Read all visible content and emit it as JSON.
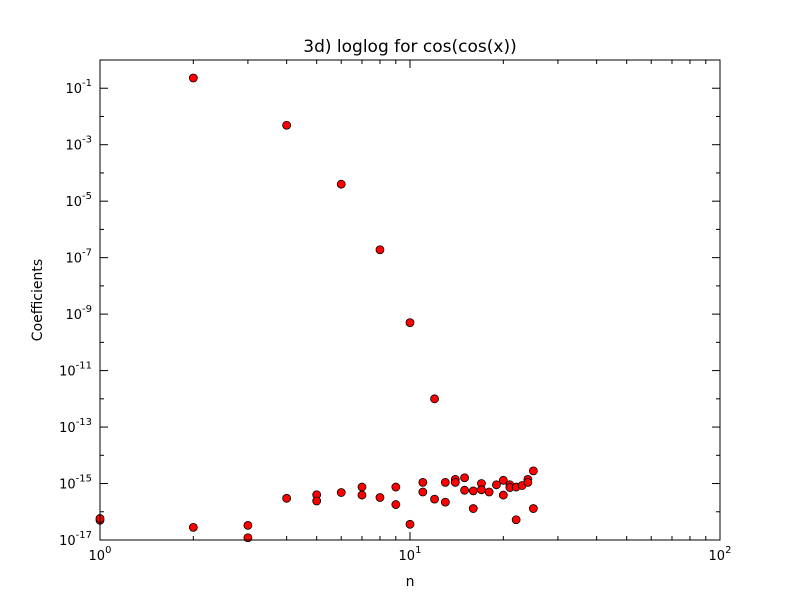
{
  "chart_data": {
    "type": "scatter",
    "title": "3d) loglog for cos(cos(x))",
    "xlabel": "n",
    "ylabel": "Coefficients",
    "xscale": "log",
    "yscale": "log",
    "xlim": [
      1,
      100
    ],
    "ylim": [
      1e-17,
      1
    ],
    "grid": false,
    "x_ticks": [
      {
        "base": "10",
        "exp": "0",
        "value": 1
      },
      {
        "base": "10",
        "exp": "1",
        "value": 10
      },
      {
        "base": "10",
        "exp": "2",
        "value": 100
      }
    ],
    "y_ticks": [
      {
        "base": "10",
        "exp": "-1",
        "value": 0.1
      },
      {
        "base": "10",
        "exp": "-3",
        "value": 0.001
      },
      {
        "base": "10",
        "exp": "-5",
        "value": 1e-05
      },
      {
        "base": "10",
        "exp": "-7",
        "value": 1e-07
      },
      {
        "base": "10",
        "exp": "-9",
        "value": 1e-09
      },
      {
        "base": "10",
        "exp": "-11",
        "value": 1e-11
      },
      {
        "base": "10",
        "exp": "-13",
        "value": 1e-13
      },
      {
        "base": "10",
        "exp": "-15",
        "value": 1e-15
      },
      {
        "base": "10",
        "exp": "-17",
        "value": 1e-17
      }
    ],
    "marker_color": "#ff0000",
    "marker_edge": "#000000",
    "points": [
      {
        "x": 1,
        "y": 5e-17
      },
      {
        "x": 1,
        "y": 5.8e-17
      },
      {
        "x": 2,
        "y": 0.23
      },
      {
        "x": 2,
        "y": 2.8e-17
      },
      {
        "x": 3,
        "y": 3.3e-17
      },
      {
        "x": 3,
        "y": 1.2e-17
      },
      {
        "x": 4,
        "y": 0.0049
      },
      {
        "x": 4,
        "y": 3e-16
      },
      {
        "x": 5,
        "y": 4e-16
      },
      {
        "x": 5,
        "y": 2.4e-16
      },
      {
        "x": 6,
        "y": 4e-05
      },
      {
        "x": 6,
        "y": 4.8e-16
      },
      {
        "x": 7,
        "y": 7.5e-16
      },
      {
        "x": 7,
        "y": 3.9e-16
      },
      {
        "x": 8,
        "y": 1.9e-07
      },
      {
        "x": 8,
        "y": 3.2e-16
      },
      {
        "x": 9,
        "y": 7.5e-16
      },
      {
        "x": 9,
        "y": 1.8e-16
      },
      {
        "x": 10,
        "y": 5e-10
      },
      {
        "x": 10,
        "y": 3.6e-17
      },
      {
        "x": 11,
        "y": 1.1e-15
      },
      {
        "x": 11,
        "y": 5e-16
      },
      {
        "x": 12,
        "y": 1e-12
      },
      {
        "x": 12,
        "y": 2.8e-16
      },
      {
        "x": 13,
        "y": 1.1e-15
      },
      {
        "x": 13,
        "y": 2.2e-16
      },
      {
        "x": 14,
        "y": 1.4e-15
      },
      {
        "x": 14,
        "y": 1.1e-15
      },
      {
        "x": 15,
        "y": 1.6e-15
      },
      {
        "x": 15,
        "y": 5.8e-16
      },
      {
        "x": 16,
        "y": 5.5e-16
      },
      {
        "x": 16,
        "y": 1.3e-16
      },
      {
        "x": 17,
        "y": 1e-15
      },
      {
        "x": 17,
        "y": 6e-16
      },
      {
        "x": 18,
        "y": 5e-16
      },
      {
        "x": 19,
        "y": 9e-16
      },
      {
        "x": 20,
        "y": 1.3e-15
      },
      {
        "x": 20,
        "y": 3.9e-16
      },
      {
        "x": 21,
        "y": 9e-16
      },
      {
        "x": 21,
        "y": 7.2e-16
      },
      {
        "x": 22,
        "y": 7.5e-16
      },
      {
        "x": 22,
        "y": 5.2e-17
      },
      {
        "x": 23,
        "y": 8.5e-16
      },
      {
        "x": 24,
        "y": 1.4e-15
      },
      {
        "x": 24,
        "y": 1.1e-15
      },
      {
        "x": 25,
        "y": 2.8e-15
      },
      {
        "x": 25,
        "y": 1.3e-16
      }
    ]
  }
}
